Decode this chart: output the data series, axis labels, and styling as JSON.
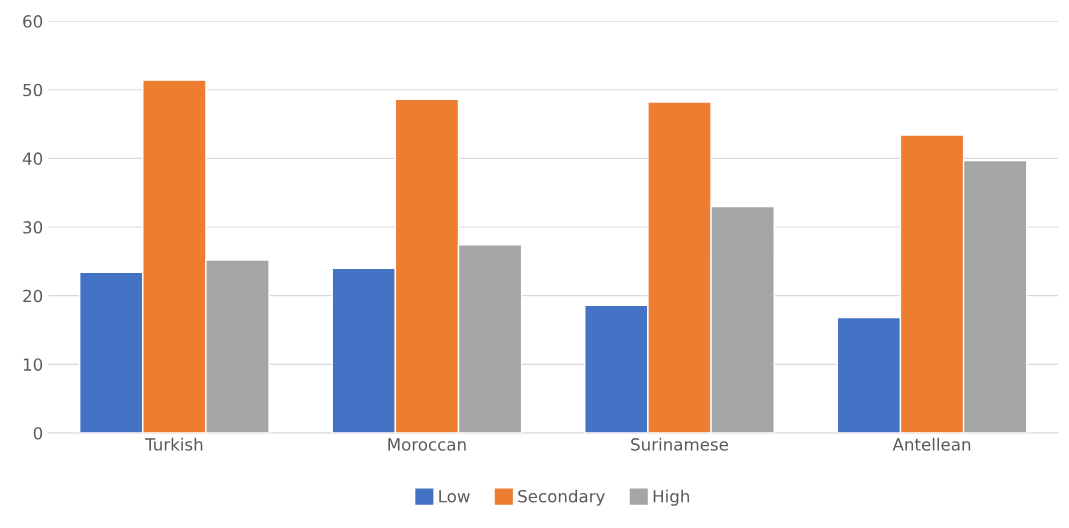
{
  "chart_data": {
    "type": "bar",
    "categories": [
      "Turkish",
      "Moroccan",
      "Surinamese",
      "Antellean"
    ],
    "series": [
      {
        "name": "Low",
        "color": "#4472c4",
        "values": [
          23.4,
          24.0,
          18.6,
          16.8
        ]
      },
      {
        "name": "Secondary",
        "color": "#ed7d31",
        "values": [
          51.4,
          48.6,
          48.2,
          43.4
        ]
      },
      {
        "name": "High",
        "color": "#a5a5a5",
        "values": [
          25.2,
          27.4,
          33.0,
          39.7
        ]
      }
    ],
    "ylim": [
      0,
      60
    ],
    "yticks": [
      0,
      10,
      20,
      30,
      40,
      50,
      60
    ],
    "grid": "y",
    "legend": "bottom"
  }
}
